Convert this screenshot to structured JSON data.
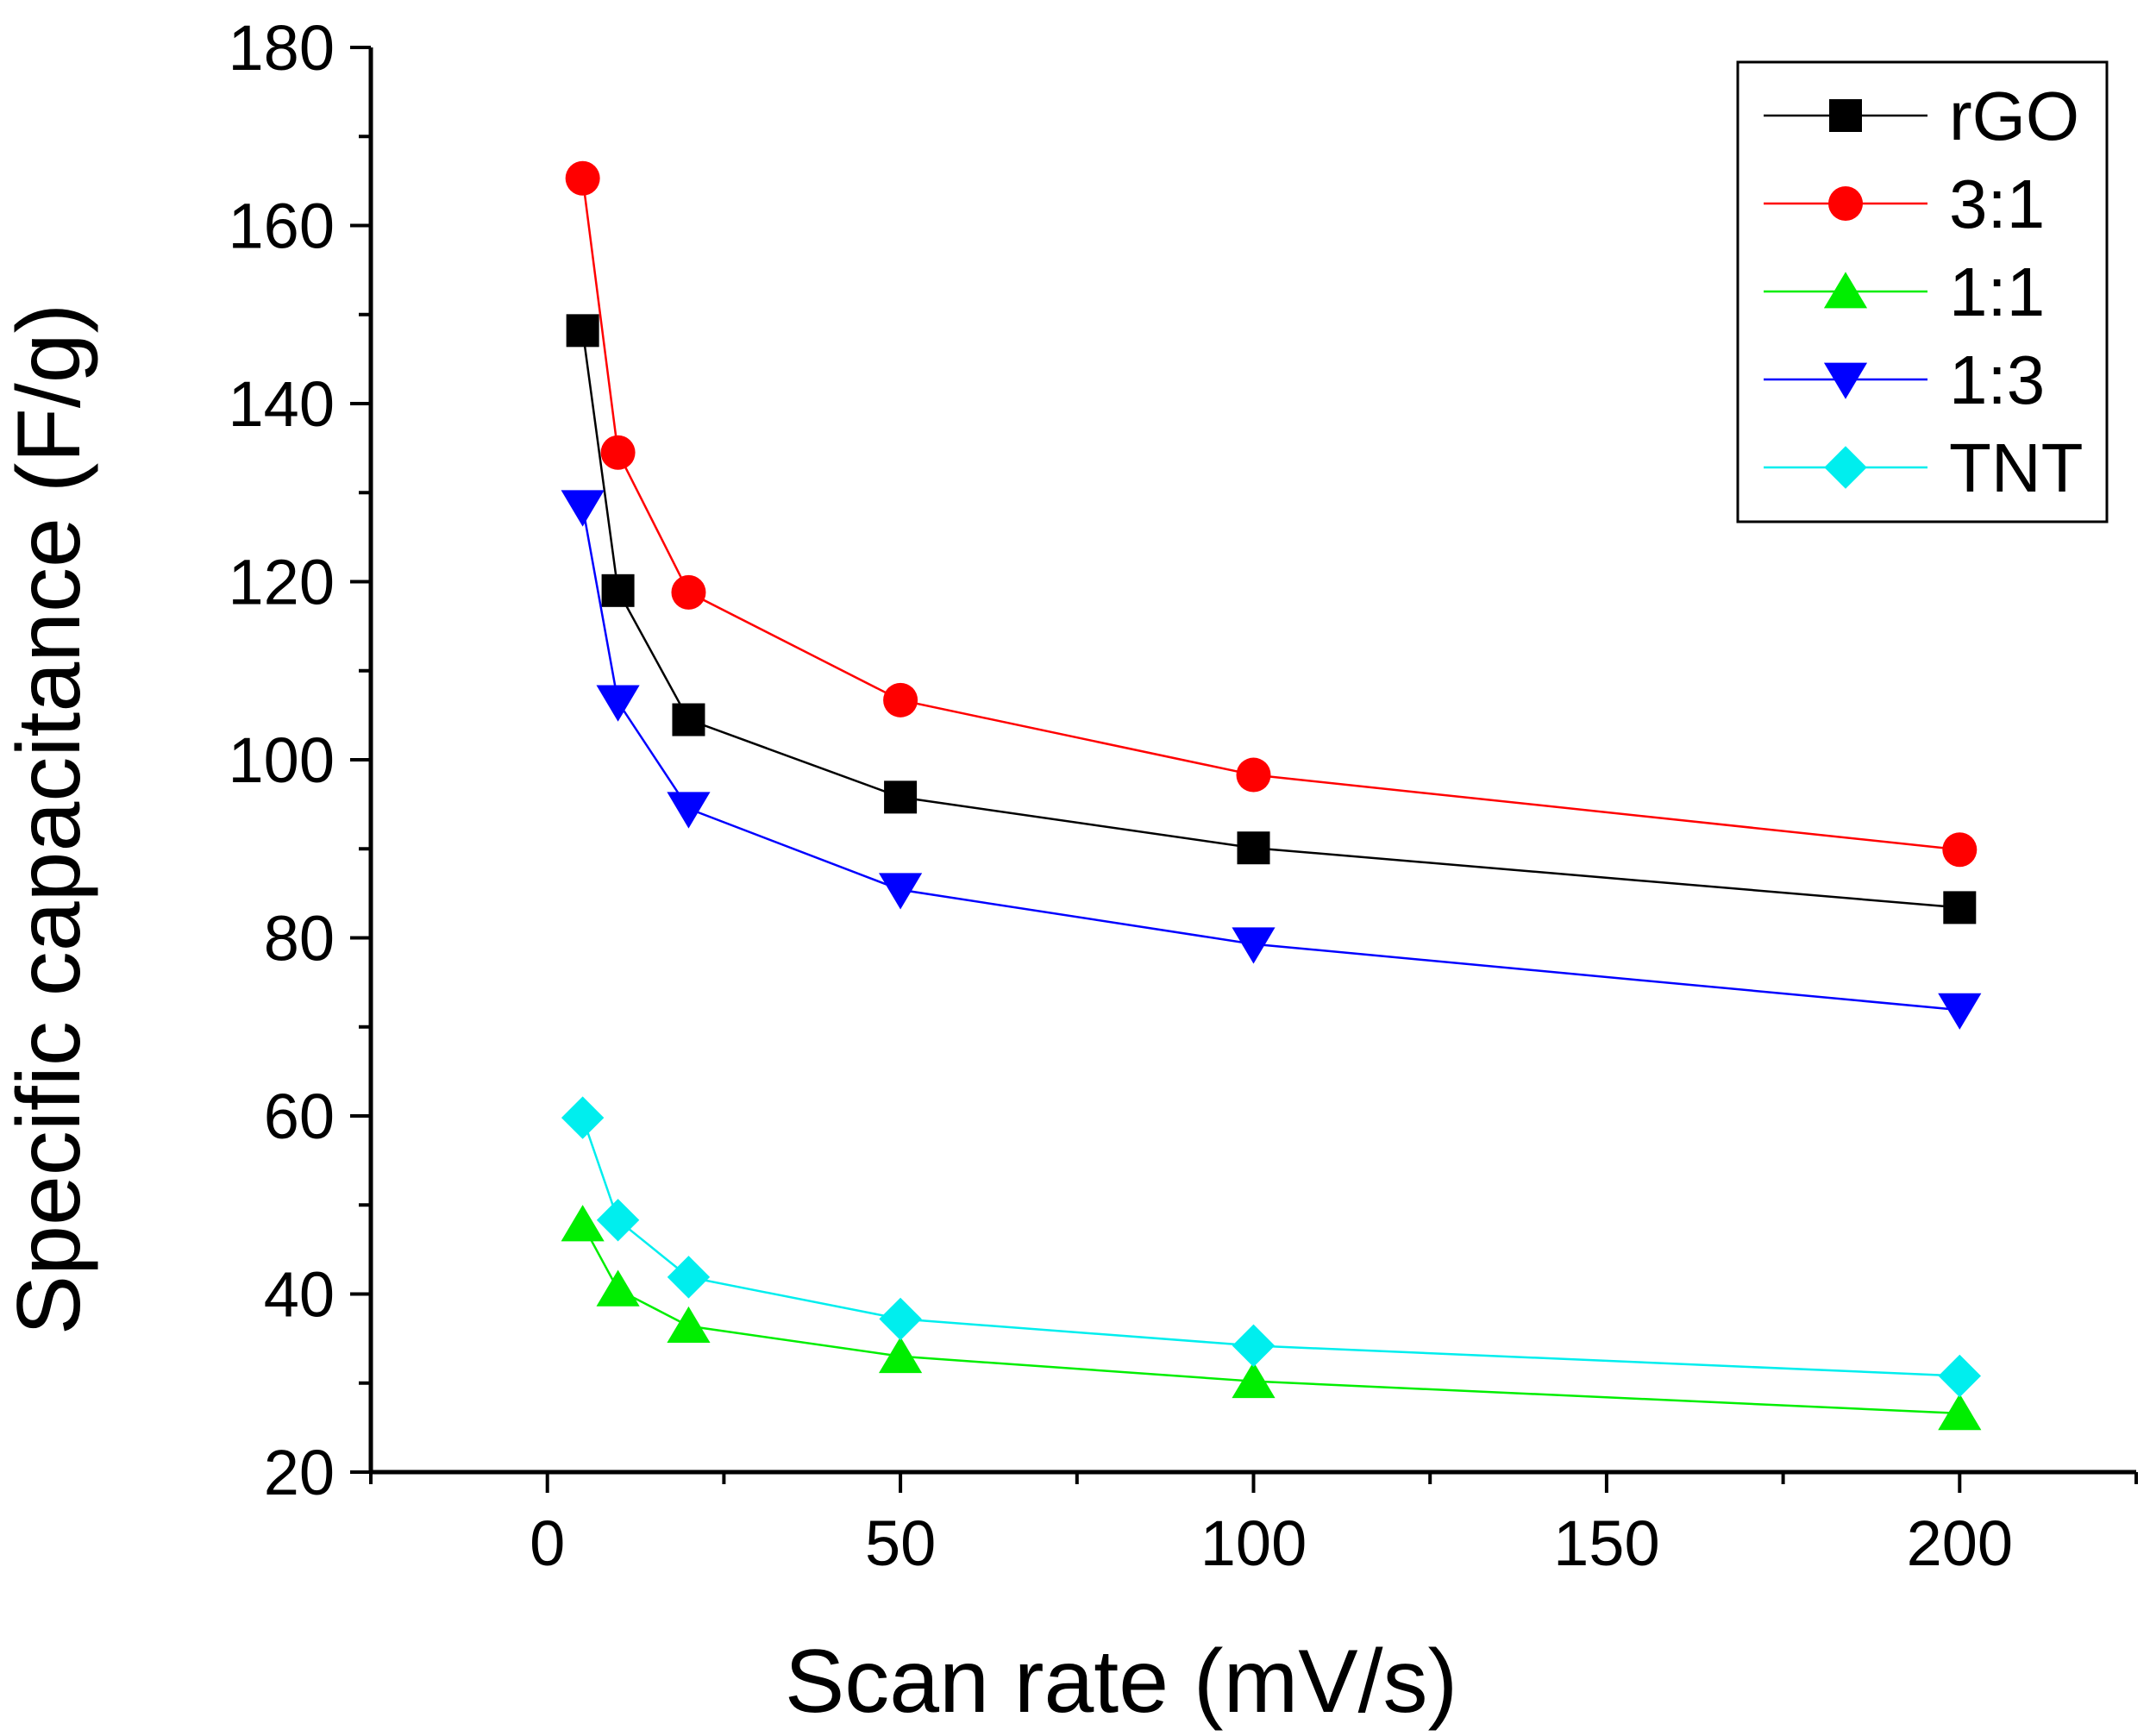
{
  "chart_data": {
    "type": "line",
    "title": "",
    "xlabel": "Scan rate (mV/s)",
    "ylabel": "Specific capacitance (F/g)",
    "xlim": [
      -25,
      225
    ],
    "ylim": [
      20,
      180
    ],
    "xticks": [
      0,
      50,
      100,
      150,
      200
    ],
    "yticks": [
      20,
      40,
      60,
      80,
      100,
      120,
      140,
      160,
      180
    ],
    "xtick_labels": [
      "0",
      "50",
      "100",
      "150",
      "200"
    ],
    "ytick_labels": [
      "20",
      "40",
      "60",
      "80",
      "100",
      "120",
      "140",
      "160",
      "180"
    ],
    "legend_position": "top-right",
    "x": [
      5,
      10,
      20,
      50,
      100,
      200
    ],
    "series": [
      {
        "name": "rGO",
        "marker": "square",
        "color": "#000000",
        "values": [
          148.2,
          119.0,
          104.5,
          95.8,
          90.1,
          83.4
        ]
      },
      {
        "name": "3:1",
        "marker": "circle",
        "color": "#ff0000",
        "values": [
          165.3,
          134.5,
          118.8,
          106.7,
          98.3,
          89.9
        ]
      },
      {
        "name": "1:1",
        "marker": "triangle-up",
        "color": "#00ee00",
        "values": [
          47.8,
          40.5,
          36.4,
          33.0,
          30.2,
          26.6
        ]
      },
      {
        "name": "1:3",
        "marker": "triangle-down",
        "color": "#0000ff",
        "values": [
          128.4,
          106.5,
          94.5,
          85.4,
          79.3,
          71.9
        ]
      },
      {
        "name": "TNT",
        "marker": "diamond",
        "color": "#00eeee",
        "values": [
          59.8,
          48.3,
          41.9,
          37.2,
          34.2,
          30.8
        ]
      }
    ]
  }
}
